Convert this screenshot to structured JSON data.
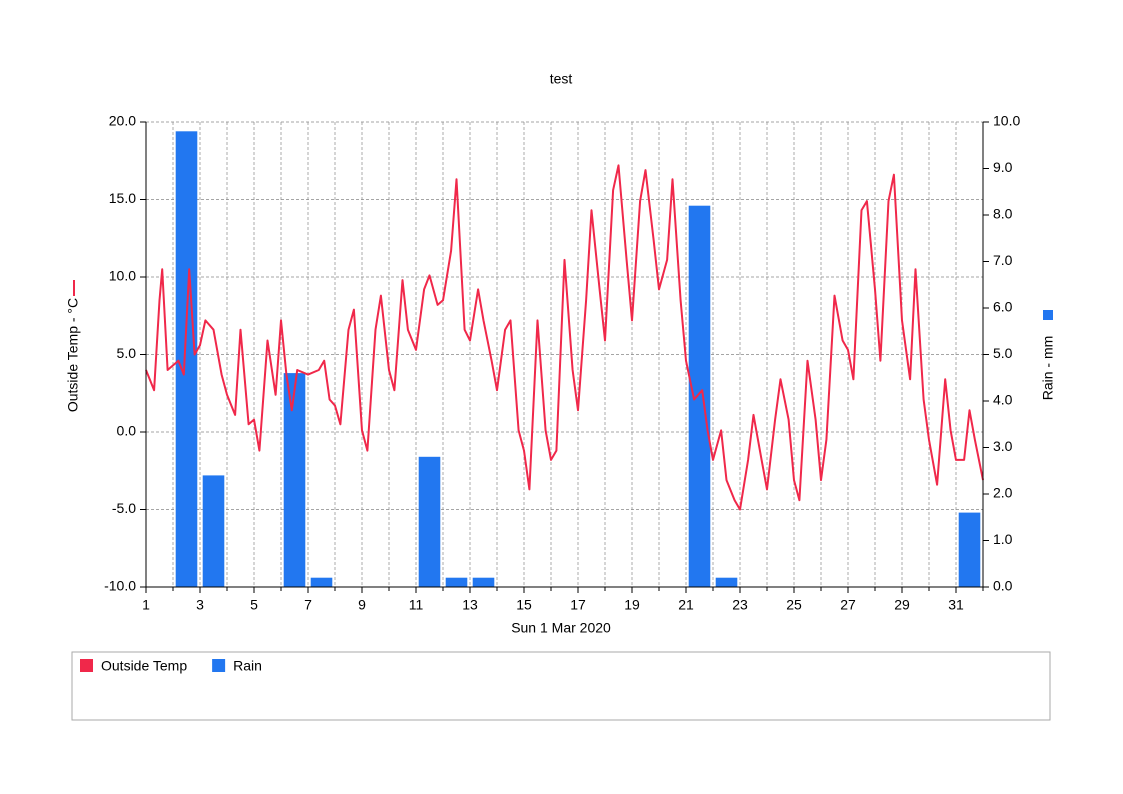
{
  "chart_data": {
    "type": "line-bar",
    "title": "test",
    "x_label": "Sun 1 Mar 2020",
    "y_label": "Outside Temp - °C",
    "y2_label": "Rain - mm",
    "xlim": [
      1,
      32
    ],
    "xticks": [
      1,
      3,
      5,
      7,
      9,
      11,
      13,
      15,
      17,
      19,
      21,
      23,
      25,
      27,
      29,
      31
    ],
    "xminor_ticks": [
      2,
      4,
      6,
      8,
      10,
      12,
      14,
      16,
      18,
      20,
      22,
      24,
      26,
      28,
      30,
      32
    ],
    "ylim": [
      -10,
      20
    ],
    "yticks": [
      {
        "value": -10,
        "label": "-10.0"
      },
      {
        "value": -5,
        "label": "-5.0"
      },
      {
        "value": 0,
        "label": "0.0"
      },
      {
        "value": 5,
        "label": "5.0"
      },
      {
        "value": 10,
        "label": "10.0"
      },
      {
        "value": 15,
        "label": "15.0"
      },
      {
        "value": 20,
        "label": "20.0"
      }
    ],
    "y2lim": [
      0,
      10
    ],
    "y2ticks": [
      {
        "value": 0,
        "label": "0.0"
      },
      {
        "value": 1,
        "label": "1.0"
      },
      {
        "value": 2,
        "label": "2.0"
      },
      {
        "value": 3,
        "label": "3.0"
      },
      {
        "value": 4,
        "label": "4.0"
      },
      {
        "value": 5,
        "label": "5.0"
      },
      {
        "value": 6,
        "label": "6.0"
      },
      {
        "value": 7,
        "label": "7.0"
      },
      {
        "value": 8,
        "label": "8.0"
      },
      {
        "value": 9,
        "label": "9.0"
      },
      {
        "value": 10,
        "label": "10.0"
      }
    ],
    "grid": true,
    "series": [
      {
        "name": "Outside Temp",
        "type": "line",
        "color": "#f0284a",
        "x": [
          1,
          1.3,
          1.5,
          1.6,
          1.8,
          2,
          2.2,
          2.4,
          2.6,
          2.8,
          3,
          3.2,
          3.5,
          3.8,
          4,
          4.3,
          4.5,
          4.8,
          5,
          5.2,
          5.5,
          5.8,
          6,
          6.2,
          6.4,
          6.6,
          7,
          7.4,
          7.6,
          7.8,
          8,
          8.2,
          8.5,
          8.7,
          9,
          9.2,
          9.5,
          9.7,
          10,
          10.2,
          10.5,
          10.7,
          11,
          11.3,
          11.5,
          11.8,
          12,
          12.3,
          12.5,
          12.8,
          13,
          13.3,
          13.5,
          13.8,
          14,
          14.3,
          14.5,
          14.8,
          15,
          15.2,
          15.5,
          15.8,
          16,
          16.2,
          16.5,
          16.8,
          17,
          17.3,
          17.5,
          17.8,
          18,
          18.3,
          18.5,
          18.8,
          19,
          19.3,
          19.5,
          19.8,
          20,
          20.3,
          20.5,
          20.8,
          21,
          21.3,
          21.6,
          21.8,
          22,
          22.3,
          22.5,
          22.8,
          23,
          23.3,
          23.5,
          23.8,
          24,
          24.3,
          24.5,
          24.8,
          25,
          25.2,
          25.5,
          25.8,
          26,
          26.2,
          26.5,
          26.8,
          27,
          27.2,
          27.5,
          27.7,
          28,
          28.2,
          28.5,
          28.7,
          29,
          29.3,
          29.5,
          29.8,
          30,
          30.3,
          30.6,
          30.8,
          31,
          31.3,
          31.5,
          31.7,
          32
        ],
        "values": [
          4.0,
          2.7,
          8.5,
          10.5,
          4.0,
          4.3,
          4.6,
          3.7,
          10.5,
          5.0,
          5.6,
          7.2,
          6.6,
          3.7,
          2.4,
          1.1,
          6.6,
          0.5,
          0.8,
          -1.2,
          5.9,
          2.4,
          7.2,
          3.7,
          1.4,
          4.0,
          3.7,
          4.0,
          4.6,
          2.1,
          1.7,
          0.5,
          6.6,
          7.9,
          0.1,
          -1.2,
          6.6,
          8.8,
          4.0,
          2.7,
          9.8,
          6.6,
          5.3,
          9.2,
          10.1,
          8.2,
          8.5,
          11.7,
          16.3,
          6.6,
          5.9,
          9.2,
          7.2,
          4.6,
          2.7,
          6.6,
          7.2,
          0.1,
          -1.2,
          -3.7,
          7.2,
          0.1,
          -1.8,
          -1.2,
          11.1,
          4.0,
          1.4,
          8.5,
          14.3,
          9.2,
          5.9,
          15.6,
          17.2,
          11.1,
          7.2,
          14.9,
          16.9,
          12.4,
          9.2,
          11.1,
          16.3,
          8.5,
          4.6,
          2.1,
          2.7,
          0.1,
          -1.8,
          0.1,
          -3.1,
          -4.4,
          -5.0,
          -1.8,
          1.1,
          -1.8,
          -3.7,
          0.8,
          3.4,
          0.8,
          -3.1,
          -4.4,
          4.6,
          0.8,
          -3.1,
          -0.5,
          8.8,
          5.9,
          5.3,
          3.4,
          14.3,
          14.9,
          9.2,
          4.6,
          14.9,
          16.6,
          7.2,
          3.4,
          10.5,
          2.1,
          -0.5,
          -3.4,
          3.4,
          0.1,
          -1.8,
          -1.8,
          1.4,
          -0.5,
          -3.1
        ]
      },
      {
        "name": "Rain",
        "type": "bar",
        "axis": "y2",
        "color": "#2277f0",
        "x": [
          2.5,
          3.5,
          6.5,
          7.5,
          11.5,
          12.5,
          13.5,
          21.5,
          22.5,
          31.5
        ],
        "values": [
          9.8,
          2.4,
          4.6,
          0.2,
          2.8,
          0.2,
          0.2,
          8.2,
          0.2,
          1.6
        ]
      }
    ]
  }
}
